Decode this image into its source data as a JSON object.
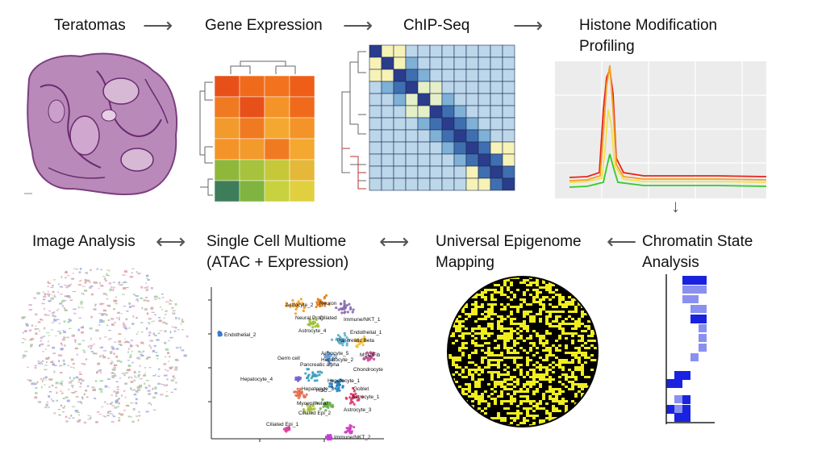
{
  "steps": {
    "teratomas": "Teratomas",
    "gene_expression": "Gene Expression",
    "chipseq": "ChIP-Seq",
    "histone_line1": "Histone Modification",
    "histone_line2": "Profiling",
    "image_analysis": "Image Analysis",
    "single_cell_line1": "Single Cell Multiome",
    "single_cell_line2": "(ATAC + Expression)",
    "universal_line1": "Universal Epigenome",
    "universal_line2": "Mapping",
    "chromatin_line1": "Chromatin State",
    "chromatin_line2": "Analysis"
  },
  "arrows": {
    "right": "⟶",
    "both": "⟷",
    "left": "⟵",
    "down": "↓"
  },
  "umap_labels": [
    "Astrocyte_2",
    "Neuron",
    "Neural Prog",
    "Ciliated",
    "Immune/NKT_1",
    "Astrocyte_4",
    "Endothelial_2",
    "Endothelial_1",
    "Pancreatic Beta",
    "Astrocyte_5",
    "Hepatocyte_2",
    "MSC/Fib",
    "Germ cell",
    "Pancreatic alpha",
    "Chondrocyte",
    "Hepatocyte_4",
    "Hepatocyte_1",
    "Hepatocyte_3",
    "HSC",
    "Goblet",
    "Astrocyte_1",
    "Myoepithelial",
    "Astrocyte_3",
    "Ciliated Epi_2",
    "Ciliated Epi_1",
    "Immune/NKT_2"
  ],
  "colors": {
    "arrow": "#555555",
    "tissue": "#9b5a9e",
    "chip_dark": "#2b3c8c",
    "chip_light": "#f7f2b5",
    "histone_red": "#e8231a",
    "histone_orange": "#f4a023",
    "histone_yellow": "#f2e24a",
    "histone_green": "#35c92b",
    "chromatin_blue": "#1a22e0",
    "sphere_yellow": "#f0ee1e"
  }
}
